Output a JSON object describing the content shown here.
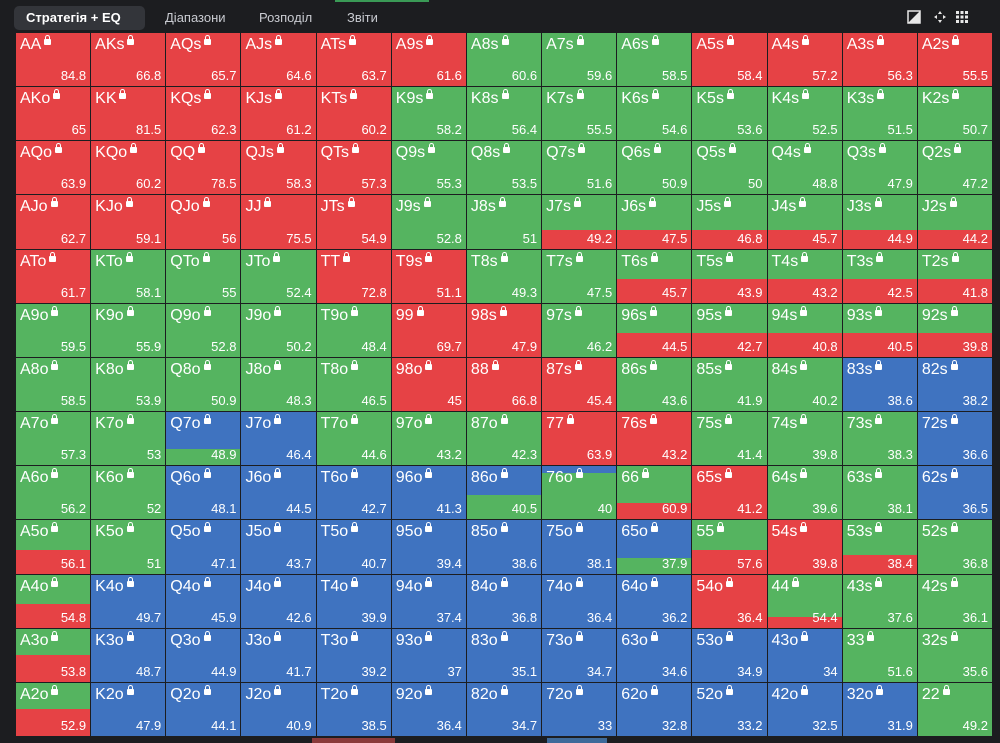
{
  "tabs": [
    {
      "label": "Стратегія + EQ",
      "active": true
    },
    {
      "label": "Діапазони",
      "active": false
    },
    {
      "label": "Розподіл",
      "active": false
    },
    {
      "label": "Звіти",
      "active": false
    }
  ],
  "tools": [
    "contrast-icon",
    "move-icon",
    "grid-icon"
  ],
  "colors": {
    "raise": "#e64245",
    "call": "#55b460",
    "fold": "#3f73c0",
    "background": "#1c1d20"
  },
  "rows": [
    [
      [
        "AA",
        84.8,
        "R"
      ],
      [
        "AKs",
        66.8,
        "R"
      ],
      [
        "AQs",
        65.7,
        "R"
      ],
      [
        "AJs",
        64.6,
        "R"
      ],
      [
        "ATs",
        63.7,
        "R"
      ],
      [
        "A9s",
        61.6,
        "R"
      ],
      [
        "A8s",
        60.6,
        "C"
      ],
      [
        "A7s",
        59.6,
        "C"
      ],
      [
        "A6s",
        58.5,
        "C"
      ],
      [
        "A5s",
        58.4,
        "R"
      ],
      [
        "A4s",
        57.2,
        "R"
      ],
      [
        "A3s",
        56.3,
        "R"
      ],
      [
        "A2s",
        55.5,
        "R"
      ]
    ],
    [
      [
        "AKo",
        65,
        "R"
      ],
      [
        "KK",
        81.5,
        "R"
      ],
      [
        "KQs",
        62.3,
        "R"
      ],
      [
        "KJs",
        61.2,
        "R"
      ],
      [
        "KTs",
        60.2,
        "R"
      ],
      [
        "K9s",
        58.2,
        "C"
      ],
      [
        "K8s",
        56.4,
        "C"
      ],
      [
        "K7s",
        55.5,
        "C"
      ],
      [
        "K6s",
        54.6,
        "C"
      ],
      [
        "K5s",
        53.6,
        "C"
      ],
      [
        "K4s",
        52.5,
        "C"
      ],
      [
        "K3s",
        51.5,
        "C"
      ],
      [
        "K2s",
        50.7,
        "C"
      ]
    ],
    [
      [
        "AQo",
        63.9,
        "R"
      ],
      [
        "KQo",
        60.2,
        "R"
      ],
      [
        "QQ",
        78.5,
        "R"
      ],
      [
        "QJs",
        58.3,
        "R"
      ],
      [
        "QTs",
        57.3,
        "R"
      ],
      [
        "Q9s",
        55.3,
        "C"
      ],
      [
        "Q8s",
        53.5,
        "C"
      ],
      [
        "Q7s",
        51.6,
        "C"
      ],
      [
        "Q6s",
        50.9,
        "C"
      ],
      [
        "Q5s",
        50,
        "C"
      ],
      [
        "Q4s",
        48.8,
        "C"
      ],
      [
        "Q3s",
        47.9,
        "C"
      ],
      [
        "Q2s",
        47.2,
        "C"
      ]
    ],
    [
      [
        "AJo",
        62.7,
        "R"
      ],
      [
        "KJo",
        59.1,
        "R"
      ],
      [
        "QJo",
        56,
        "R"
      ],
      [
        "JJ",
        75.5,
        "R"
      ],
      [
        "JTs",
        54.9,
        "R"
      ],
      [
        "J9s",
        52.8,
        "C"
      ],
      [
        "J8s",
        51,
        "C"
      ],
      [
        "J7s",
        49.2,
        "C",
        0,
        0.35
      ],
      [
        "J6s",
        47.5,
        "C",
        0,
        0.35
      ],
      [
        "J5s",
        46.8,
        "C",
        0,
        0.35
      ],
      [
        "J4s",
        45.7,
        "C",
        0,
        0.35
      ],
      [
        "J3s",
        44.9,
        "C",
        0,
        0.35
      ],
      [
        "J2s",
        44.2,
        "C",
        0,
        0.35
      ]
    ],
    [
      [
        "ATo",
        61.7,
        "R"
      ],
      [
        "KTo",
        58.1,
        "C"
      ],
      [
        "QTo",
        55,
        "C"
      ],
      [
        "JTo",
        52.4,
        "C"
      ],
      [
        "TT",
        72.8,
        "R"
      ],
      [
        "T9s",
        51.1,
        "R"
      ],
      [
        "T8s",
        49.3,
        "C"
      ],
      [
        "T7s",
        47.5,
        "C"
      ],
      [
        "T6s",
        45.7,
        "C",
        0,
        0.45
      ],
      [
        "T5s",
        43.9,
        "C",
        0,
        0.45
      ],
      [
        "T4s",
        43.2,
        "C",
        0,
        0.45
      ],
      [
        "T3s",
        42.5,
        "C",
        0,
        0.45
      ],
      [
        "T2s",
        41.8,
        "C",
        0,
        0.45
      ]
    ],
    [
      [
        "A9o",
        59.5,
        "C"
      ],
      [
        "K9o",
        55.9,
        "C"
      ],
      [
        "Q9o",
        52.8,
        "C"
      ],
      [
        "J9o",
        50.2,
        "C"
      ],
      [
        "T9o",
        48.4,
        "C"
      ],
      [
        "99",
        69.7,
        "R"
      ],
      [
        "98s",
        47.9,
        "R"
      ],
      [
        "97s",
        46.2,
        "C"
      ],
      [
        "96s",
        44.5,
        "C",
        0,
        0.45
      ],
      [
        "95s",
        42.7,
        "C",
        0,
        0.45
      ],
      [
        "94s",
        40.8,
        "C",
        0,
        0.45
      ],
      [
        "93s",
        40.5,
        "C",
        0,
        0.45
      ],
      [
        "92s",
        39.8,
        "C",
        0,
        0.45
      ]
    ],
    [
      [
        "A8o",
        58.5,
        "C"
      ],
      [
        "K8o",
        53.9,
        "C"
      ],
      [
        "Q8o",
        50.9,
        "C"
      ],
      [
        "J8o",
        48.3,
        "C"
      ],
      [
        "T8o",
        46.5,
        "C"
      ],
      [
        "98o",
        45,
        "R"
      ],
      [
        "88",
        66.8,
        "R"
      ],
      [
        "87s",
        45.4,
        "R"
      ],
      [
        "86s",
        43.6,
        "C"
      ],
      [
        "85s",
        41.9,
        "C"
      ],
      [
        "84s",
        40.2,
        "C"
      ],
      [
        "83s",
        38.6,
        "F"
      ],
      [
        "82s",
        38.2,
        "F"
      ]
    ],
    [
      [
        "A7o",
        57.3,
        "C"
      ],
      [
        "K7o",
        53,
        "C"
      ],
      [
        "Q7o",
        48.9,
        "F",
        0,
        0,
        0.3
      ],
      [
        "J7o",
        46.4,
        "F"
      ],
      [
        "T7o",
        44.6,
        "C"
      ],
      [
        "97o",
        43.2,
        "C"
      ],
      [
        "87o",
        42.3,
        "C"
      ],
      [
        "77",
        63.9,
        "R",
        0,
        0,
        0.25
      ],
      [
        "76s",
        43.2,
        "R"
      ],
      [
        "75s",
        41.4,
        "C"
      ],
      [
        "74s",
        39.8,
        "C"
      ],
      [
        "73s",
        38.3,
        "C"
      ],
      [
        "72s",
        36.6,
        "F"
      ]
    ],
    [
      [
        "A6o",
        56.2,
        "C"
      ],
      [
        "K6o",
        52,
        "C"
      ],
      [
        "Q6o",
        48.1,
        "F"
      ],
      [
        "J6o",
        44.5,
        "F"
      ],
      [
        "T6o",
        42.7,
        "F"
      ],
      [
        "96o",
        41.3,
        "F"
      ],
      [
        "86o",
        40.5,
        "F",
        0,
        0,
        0.45
      ],
      [
        "76o",
        40,
        "C",
        0.12
      ],
      [
        "66",
        60.9,
        "C",
        0,
        0.3
      ],
      [
        "65s",
        41.2,
        "R"
      ],
      [
        "64s",
        39.6,
        "C"
      ],
      [
        "63s",
        38.1,
        "C"
      ],
      [
        "62s",
        36.5,
        "F"
      ]
    ],
    [
      [
        "A5o",
        56.1,
        "C",
        0,
        0.45
      ],
      [
        "K5o",
        51,
        "C"
      ],
      [
        "Q5o",
        47.1,
        "F"
      ],
      [
        "J5o",
        43.7,
        "F"
      ],
      [
        "T5o",
        40.7,
        "F"
      ],
      [
        "95o",
        39.4,
        "F"
      ],
      [
        "85o",
        38.6,
        "F"
      ],
      [
        "75o",
        38.1,
        "F"
      ],
      [
        "65o",
        37.9,
        "F",
        0,
        0,
        0.3
      ],
      [
        "55",
        57.6,
        "C",
        0,
        0.45
      ],
      [
        "54s",
        39.8,
        "R"
      ],
      [
        "53s",
        38.4,
        "C",
        0,
        0.35
      ],
      [
        "52s",
        36.8,
        "C"
      ]
    ],
    [
      [
        "A4o",
        54.8,
        "C",
        0,
        0.45
      ],
      [
        "K4o",
        49.7,
        "F"
      ],
      [
        "Q4o",
        45.9,
        "F"
      ],
      [
        "J4o",
        42.6,
        "F"
      ],
      [
        "T4o",
        39.9,
        "F"
      ],
      [
        "94o",
        37.4,
        "F"
      ],
      [
        "84o",
        36.8,
        "F"
      ],
      [
        "74o",
        36.4,
        "F"
      ],
      [
        "64o",
        36.2,
        "F"
      ],
      [
        "54o",
        36.4,
        "R"
      ],
      [
        "44",
        54.4,
        "C",
        0,
        0.2
      ],
      [
        "43s",
        37.6,
        "C"
      ],
      [
        "42s",
        36.1,
        "C"
      ]
    ],
    [
      [
        "A3o",
        53.8,
        "C",
        0,
        0.5
      ],
      [
        "K3o",
        48.7,
        "F"
      ],
      [
        "Q3o",
        44.9,
        "F"
      ],
      [
        "J3o",
        41.7,
        "F"
      ],
      [
        "T3o",
        39.2,
        "F"
      ],
      [
        "93o",
        37,
        "F"
      ],
      [
        "83o",
        35.1,
        "F"
      ],
      [
        "73o",
        34.7,
        "F"
      ],
      [
        "63o",
        34.6,
        "F"
      ],
      [
        "53o",
        34.9,
        "F"
      ],
      [
        "43o",
        34,
        "F"
      ],
      [
        "33",
        51.6,
        "C"
      ],
      [
        "32s",
        35.6,
        "C"
      ]
    ],
    [
      [
        "A2o",
        52.9,
        "C",
        0,
        0.5
      ],
      [
        "K2o",
        47.9,
        "F"
      ],
      [
        "Q2o",
        44.1,
        "F"
      ],
      [
        "J2o",
        40.9,
        "F"
      ],
      [
        "T2o",
        38.5,
        "F"
      ],
      [
        "92o",
        36.4,
        "F"
      ],
      [
        "82o",
        34.7,
        "F"
      ],
      [
        "72o",
        33,
        "F"
      ],
      [
        "62o",
        32.8,
        "F"
      ],
      [
        "52o",
        33.2,
        "F"
      ],
      [
        "42o",
        32.5,
        "F"
      ],
      [
        "32o",
        31.9,
        "F"
      ],
      [
        "22",
        49.2,
        "C"
      ]
    ]
  ]
}
